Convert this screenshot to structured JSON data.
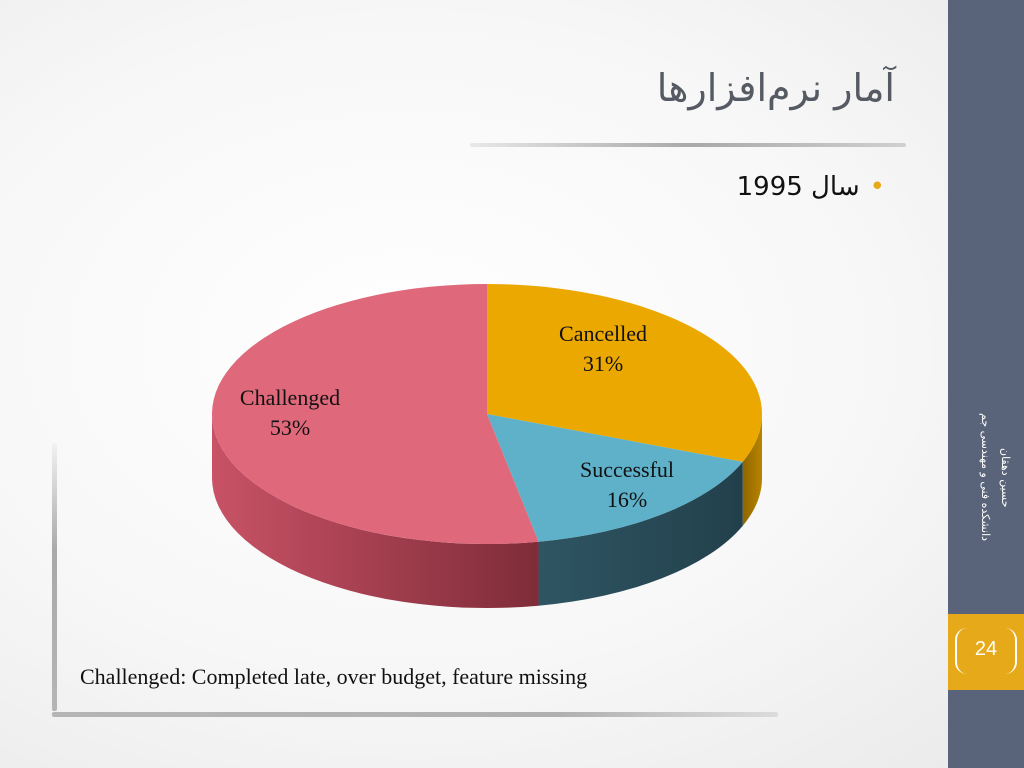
{
  "slide": {
    "title": "آمار نرم‌افزارها",
    "bullet": "سال 1995",
    "note": "Challenged: Completed late, over budget, feature missing",
    "page_number": "24",
    "sidebar_lines": [
      "حسین دهقان",
      "دانشکده فنی و مهندسی جم"
    ]
  },
  "chart_data": {
    "type": "pie",
    "title": "",
    "categories": [
      "Cancelled",
      "Successful",
      "Challenged"
    ],
    "values": [
      31,
      16,
      53
    ],
    "labels": [
      "31%",
      "16%",
      "53%"
    ],
    "colors": [
      "#eba800",
      "#5eb1c9",
      "#e0687b"
    ],
    "side_colors": [
      "#a77800",
      "#2a4b58",
      "#9c3a49"
    ],
    "legend": "none"
  }
}
